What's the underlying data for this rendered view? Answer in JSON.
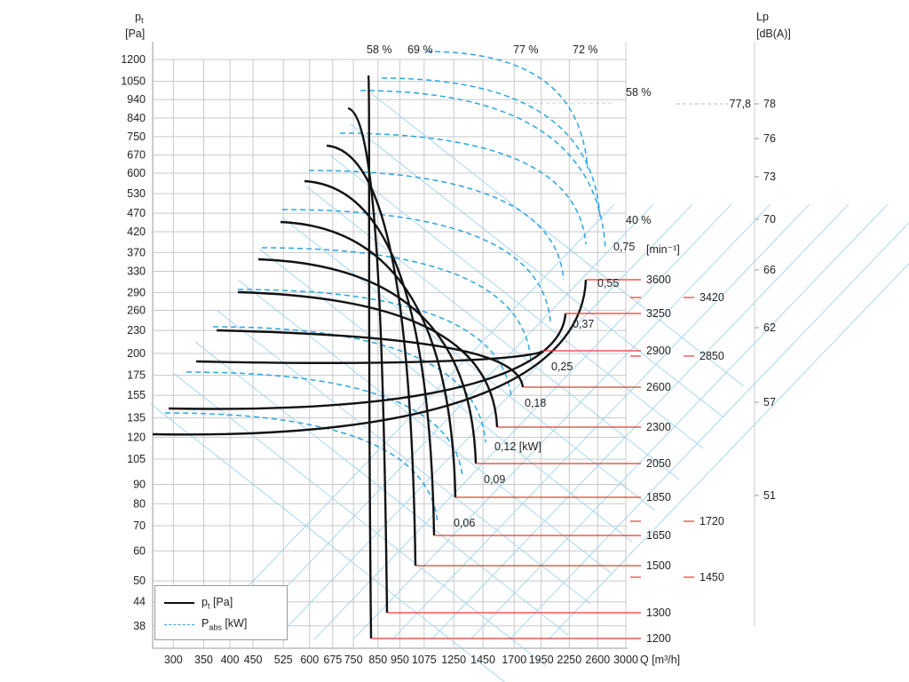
{
  "chart_data": {
    "type": "line",
    "axes": {
      "y_left_label": "p",
      "y_left_label_sub": "t",
      "y_left_unit": "[Pa]",
      "y_right_label": "Lp",
      "y_right_unit": "[dB(A)]",
      "x_label": "Q [m³/h]",
      "x_scale": "log",
      "y_scale": "log",
      "rpm_unit": "[min⁻¹]"
    },
    "y_ticks": [
      "1200",
      "1050",
      "940",
      "840",
      "750",
      "670",
      "600",
      "530",
      "470",
      "420",
      "370",
      "330",
      "290",
      "260",
      "230",
      "200",
      "175",
      "155",
      "135",
      "120",
      "105",
      "90",
      "80",
      "70",
      "60",
      "50",
      "44",
      "38"
    ],
    "x_ticks": [
      "300",
      "350",
      "400",
      "450",
      "525",
      "600",
      "675",
      "750",
      "850",
      "950",
      "1075",
      "1250",
      "1450",
      "1700",
      "1950",
      "2250",
      "2600",
      "3000"
    ],
    "lp_ticks": [
      "78",
      "76",
      "73",
      "70",
      "66",
      "62",
      "57",
      "51"
    ],
    "lp_marker": "77,8",
    "efficiency_labels": [
      "58 %",
      "69 %",
      "77 %",
      "72 %",
      "58 %",
      "40 %"
    ],
    "power_labels": [
      "0,75",
      "0,55",
      "0,37",
      "0,25",
      "0,18",
      "0,12 [kW]",
      "0,09",
      "0,06"
    ],
    "rpm_left": [
      "3600",
      "3250",
      "2900",
      "2600",
      "2300",
      "2050",
      "1850",
      "1650",
      "1500",
      "1300",
      "1200"
    ],
    "rpm_right": [
      "3420",
      "2850",
      "1720",
      "1450"
    ],
    "series": [
      {
        "name": "1200 min⁻¹",
        "p_start": 120,
        "q_max": 850
      },
      {
        "name": "1300 min⁻¹",
        "p_start": 140,
        "q_max": 900
      },
      {
        "name": "1500 min⁻¹",
        "p_start": 185,
        "q_max": 1040
      },
      {
        "name": "1650 min⁻¹",
        "p_start": 225,
        "q_max": 1150
      },
      {
        "name": "1850 min⁻¹",
        "p_start": 285,
        "q_max": 1300
      },
      {
        "name": "2050 min⁻¹",
        "p_start": 350,
        "q_max": 1430
      },
      {
        "name": "2300 min⁻¹",
        "p_start": 445,
        "q_max": 1600
      },
      {
        "name": "2600 min⁻¹",
        "p_start": 560,
        "q_max": 1820
      },
      {
        "name": "2900 min⁻¹",
        "p_start": 700,
        "q_max": 2030
      },
      {
        "name": "3250 min⁻¹",
        "p_start": 880,
        "q_max": 2250
      },
      {
        "name": "3600 min⁻¹",
        "p_start": 1080,
        "q_max": 2500
      }
    ],
    "legend": [
      {
        "label": "p",
        "sub": "t",
        "unit": " [Pa]",
        "style": "solid",
        "color": "#111111"
      },
      {
        "label": "P",
        "sub": "abs",
        "unit": " [kW]",
        "style": "dashed",
        "color": "#2aa6e0"
      }
    ],
    "colors": {
      "curve": "#111111",
      "power": "#2aa6e0",
      "rpm_line": "#e53935",
      "grid": "#c8c8c8",
      "diag": "#9fd3ee"
    }
  }
}
